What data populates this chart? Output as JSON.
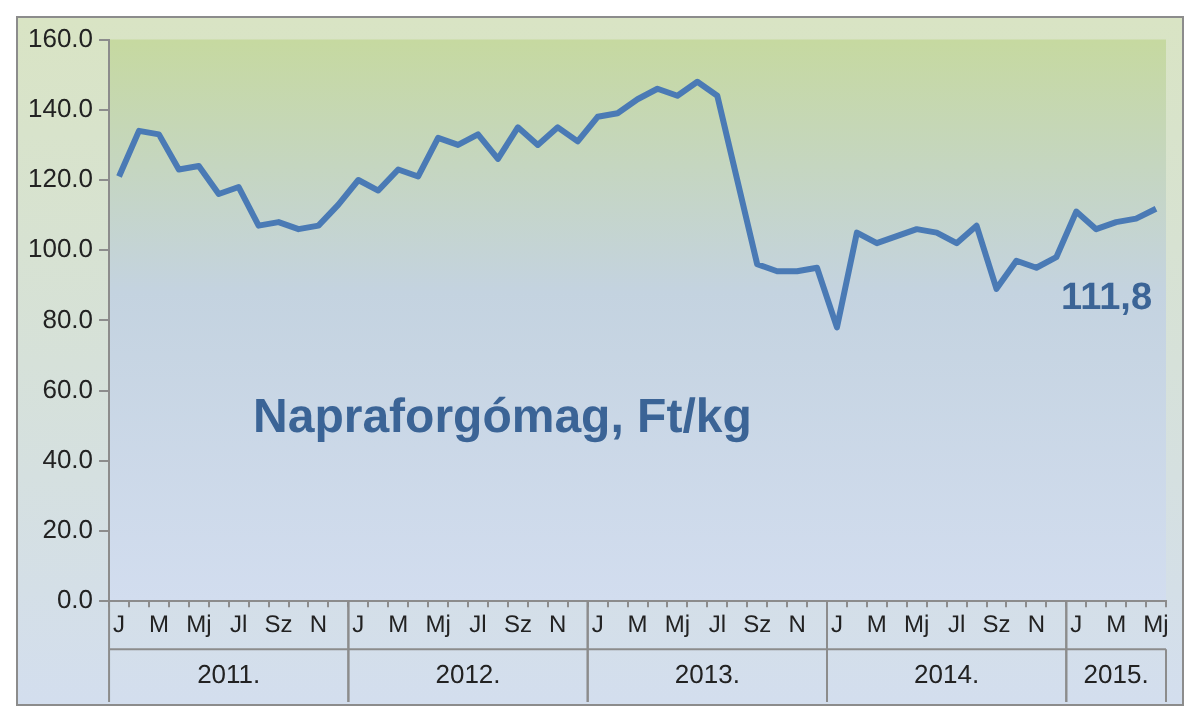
{
  "chart_data": {
    "type": "line",
    "title": "Napraforgómag, Ft/kg",
    "categories": [
      "J",
      null,
      "M",
      null,
      "Mj",
      null,
      "Jl",
      null,
      "Sz",
      null,
      "N",
      null,
      "J",
      null,
      "M",
      null,
      "Mj",
      null,
      "Jl",
      null,
      "Sz",
      null,
      "N",
      null,
      "J",
      null,
      "M",
      null,
      "Mj",
      null,
      "Jl",
      null,
      "Sz",
      null,
      "N",
      null,
      "J",
      null,
      "M",
      null,
      "Mj",
      null,
      "Jl",
      null,
      "Sz",
      null,
      "N",
      null,
      "J",
      null,
      "M",
      null,
      "Mj"
    ],
    "series": [
      {
        "color": "#4a7ab5",
        "values": [
          121,
          134,
          133,
          123,
          124,
          116,
          118,
          107,
          108,
          106,
          107,
          113,
          120,
          117,
          123,
          121,
          132,
          130,
          133,
          126,
          135,
          130,
          135,
          131,
          138,
          139,
          143,
          146,
          144,
          148,
          144,
          120,
          96,
          94,
          94,
          95,
          78,
          105,
          102,
          104,
          106,
          105,
          102,
          107,
          89,
          97,
          95,
          98,
          111,
          106,
          108,
          109,
          111.8
        ]
      }
    ],
    "ylim": [
      0,
      160
    ],
    "yticks": [
      {
        "value": 0,
        "label": "0.0"
      },
      {
        "value": 20,
        "label": "20.0"
      },
      {
        "value": 40,
        "label": "40.0"
      },
      {
        "value": 60,
        "label": "60.0"
      },
      {
        "value": 80,
        "label": "80.0"
      },
      {
        "value": 100,
        "label": "100.0"
      },
      {
        "value": 120,
        "label": "120.0"
      },
      {
        "value": 140,
        "label": "140.0"
      },
      {
        "value": 160,
        "label": "160.0"
      }
    ],
    "annotations": [
      "2011.",
      "2012.",
      "2013.",
      "2014.",
      "2015.",
      "111,8"
    ],
    "grid": false,
    "legend": false,
    "marker": "none",
    "line_style": "solid"
  }
}
